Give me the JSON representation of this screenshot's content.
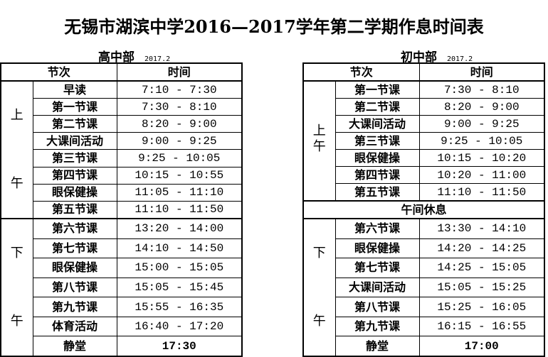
{
  "title": "无锡市湖滨中学2016—2017学年第二学期作息时间表",
  "senior": {
    "heading": "高中部",
    "date": "2017.2",
    "col_period": "节次",
    "col_time": "时间",
    "morning_label": "上午",
    "afternoon_label": "下午",
    "morning": [
      {
        "name": "早读",
        "time": "7:10 - 7:30"
      },
      {
        "name": "第一节课",
        "time": "7:30 - 8:10"
      },
      {
        "name": "第二节课",
        "time": "8:20 - 9:00"
      },
      {
        "name": "大课间活动",
        "time": "9:00 - 9:25"
      },
      {
        "name": "第三节课",
        "time": "9:25 - 10:05"
      },
      {
        "name": "第四节课",
        "time": "10:15 - 10:55"
      },
      {
        "name": "眼保健操",
        "time": "11:05 - 11:10"
      },
      {
        "name": "第五节课",
        "time": "11:10 - 11:50"
      }
    ],
    "afternoon": [
      {
        "name": "第六节课",
        "time": "13:20 - 14:00"
      },
      {
        "name": "第七节课",
        "time": "14:10 - 14:50"
      },
      {
        "name": "眼保健操",
        "time": "15:00 - 15:05"
      },
      {
        "name": "第八节课",
        "time": "15:05 - 15:45"
      },
      {
        "name": "第九节课",
        "time": "15:55 - 16:35"
      },
      {
        "name": "体育活动",
        "time": "16:40 - 17:20"
      }
    ],
    "final": {
      "name": "静堂",
      "time": "17:30"
    }
  },
  "junior": {
    "heading": "初中部",
    "date": "2017.2",
    "col_period": "节次",
    "col_time": "时间",
    "morning_label": "上午",
    "afternoon_label": "下午",
    "lunch": "午间休息",
    "morning": [
      {
        "name": "第一节课",
        "time": "7:30 - 8:10"
      },
      {
        "name": "第二节课",
        "time": "8:20 - 9:00"
      },
      {
        "name": "大课间活动",
        "time": "9:00 - 9:25"
      },
      {
        "name": "第三节课",
        "time": "9:25 - 10:05"
      },
      {
        "name": "眼保健操",
        "time": "10:15 - 10:20"
      },
      {
        "name": "第四节课",
        "time": "10:20 - 11:00"
      },
      {
        "name": "第五节课",
        "time": "11:10 - 11:50"
      }
    ],
    "afternoon": [
      {
        "name": "第六节课",
        "time": "13:30 - 14:10"
      },
      {
        "name": "眼保健操",
        "time": "14:20 - 14:25"
      },
      {
        "name": "第七节课",
        "time": "14:25 - 15:05"
      },
      {
        "name": "大课间活动",
        "time": "15:05 - 15:25"
      },
      {
        "name": "第八节课",
        "time": "15:25 - 16:05"
      },
      {
        "name": "第九节课",
        "time": "16:15 - 16:55"
      }
    ],
    "final": {
      "name": "静堂",
      "time": "17:00"
    }
  }
}
